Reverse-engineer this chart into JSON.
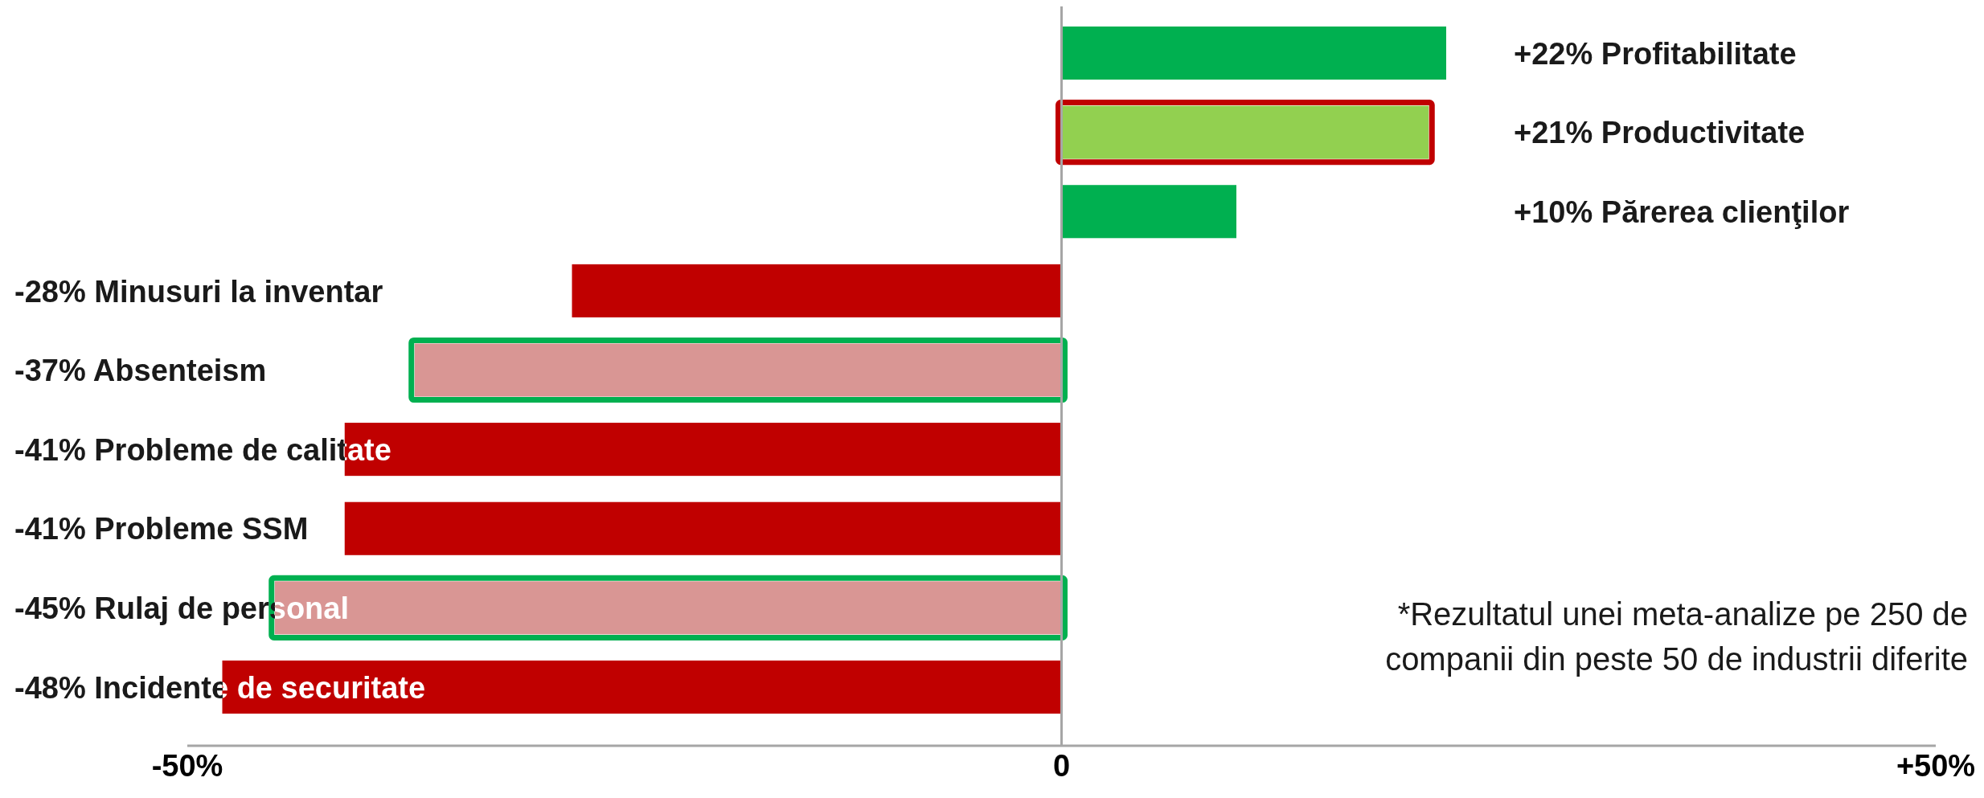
{
  "chart_data": {
    "type": "bar",
    "orientation": "horizontal",
    "categories": [
      "Profitabilitate",
      "Productivitate",
      "Părerea clienţilor",
      "Minusuri la inventar",
      "Absenteism",
      "Probleme de calitate",
      "Probleme SSM",
      "Rulaj de personal",
      "Incidente de securitate"
    ],
    "values": [
      22,
      21,
      10,
      -28,
      -37,
      -41,
      -41,
      -45,
      -48
    ],
    "colors": [
      "#00b050",
      "#92d050",
      "#00b050",
      "#c00000",
      "#d99694",
      "#c00000",
      "#c00000",
      "#d99694",
      "#c00000"
    ],
    "value_labels": [
      "+22%",
      "+21%",
      "+10%",
      "-28%",
      "-37%",
      "-41%",
      "-41%",
      "-45%",
      "-48%"
    ],
    "xlim": [
      -50,
      50
    ],
    "xticks": [
      {
        "value": -50,
        "label": "-50%"
      },
      0,
      {
        "value": 50,
        "label": "+50%"
      }
    ],
    "ref_lines": [
      {
        "axis": "x",
        "value": 0,
        "color": "#a6a6a6"
      }
    ],
    "annotations": [
      "*Rezultatul unei meta-analize pe 250 de companii din peste 50 de industrii diferite"
    ]
  }
}
